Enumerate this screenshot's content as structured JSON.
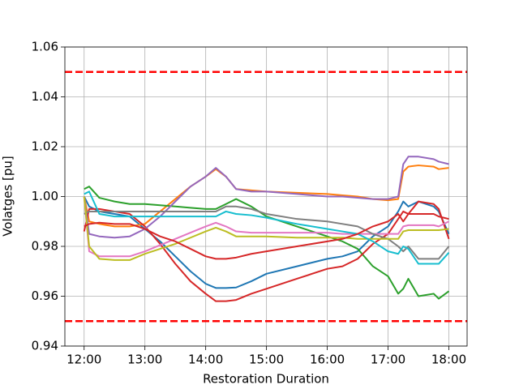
{
  "chart_data": {
    "type": "line",
    "xlabel": "Restoration Duration",
    "ylabel": "Volatges [pu]",
    "x": [
      "12:00",
      "12:05",
      "12:15",
      "12:30",
      "12:45",
      "13:00",
      "13:15",
      "13:30",
      "13:45",
      "14:00",
      "14:10",
      "14:20",
      "14:30",
      "14:45",
      "15:00",
      "15:30",
      "16:00",
      "16:15",
      "16:30",
      "16:45",
      "17:00",
      "17:10",
      "17:15",
      "17:20",
      "17:30",
      "17:45",
      "17:50",
      "18:00"
    ],
    "xlim": [
      "11:41",
      "18:18"
    ],
    "xticks": [
      "12:00",
      "13:00",
      "14:00",
      "15:00",
      "16:00",
      "17:00",
      "18:00"
    ],
    "ylim": [
      0.94,
      1.06
    ],
    "yticks": [
      0.94,
      0.96,
      0.98,
      {
        "value": 1,
        "label": "1.00"
      },
      1.02,
      1.04,
      1.06
    ],
    "grid": true,
    "hlines": [
      1.05,
      0.95
    ],
    "hline_color": "#ff0000",
    "series": [
      {
        "color": "#1f77b4",
        "values": [
          1.0,
          0.996,
          0.994,
          0.993,
          0.992,
          0.987,
          0.982,
          0.976,
          0.97,
          0.965,
          0.9633,
          0.9633,
          0.9635,
          0.966,
          0.969,
          0.972,
          0.975,
          0.976,
          0.978,
          0.984,
          0.988,
          0.994,
          0.998,
          0.996,
          0.998,
          0.996,
          0.994,
          0.985
        ]
      },
      {
        "color": "#ff7f0e",
        "values": [
          1.0,
          0.99,
          0.989,
          0.988,
          0.988,
          0.989,
          0.994,
          0.999,
          1.004,
          1.008,
          1.011,
          1.008,
          1.003,
          1.0025,
          1.002,
          1.0015,
          1.001,
          1.0005,
          1.0,
          0.999,
          0.9985,
          0.999,
          1.01,
          1.012,
          1.0125,
          1.012,
          1.011,
          1.0115
        ]
      },
      {
        "color": "#2ca02c",
        "values": [
          1.003,
          1.004,
          0.9995,
          0.998,
          0.997,
          0.997,
          0.9965,
          0.996,
          0.9955,
          0.995,
          0.995,
          0.997,
          0.999,
          0.996,
          0.992,
          0.988,
          0.984,
          0.982,
          0.979,
          0.972,
          0.968,
          0.961,
          0.963,
          0.967,
          0.96,
          0.961,
          0.959,
          0.962
        ]
      },
      {
        "color": "#d62728",
        "values": [
          0.986,
          0.995,
          0.995,
          0.994,
          0.993,
          0.988,
          0.981,
          0.973,
          0.966,
          0.961,
          0.958,
          0.958,
          0.9585,
          0.961,
          0.963,
          0.967,
          0.971,
          0.972,
          0.975,
          0.981,
          0.985,
          0.991,
          0.994,
          0.993,
          0.998,
          0.997,
          0.995,
          0.983
        ]
      },
      {
        "color": "#9467bd",
        "values": [
          1.0,
          0.985,
          0.984,
          0.9835,
          0.984,
          0.987,
          0.992,
          0.998,
          1.004,
          1.008,
          1.0115,
          1.008,
          1.003,
          1.002,
          1.002,
          1.001,
          1.0,
          1.0,
          0.9995,
          0.999,
          0.999,
          1.0,
          1.013,
          1.016,
          1.016,
          1.015,
          1.014,
          1.013
        ]
      },
      {
        "color": "#e377c2",
        "values": [
          1.0,
          0.978,
          0.976,
          0.976,
          0.976,
          0.978,
          0.9805,
          0.983,
          0.9855,
          0.988,
          0.9895,
          0.988,
          0.986,
          0.9855,
          0.9855,
          0.9855,
          0.9855,
          0.985,
          0.985,
          0.985,
          0.985,
          0.985,
          0.988,
          0.9885,
          0.9885,
          0.9885,
          0.988,
          0.99
        ]
      },
      {
        "color": "#7f7f7f",
        "values": [
          0.993,
          0.994,
          0.994,
          0.994,
          0.994,
          0.994,
          0.994,
          0.994,
          0.994,
          0.994,
          0.994,
          0.996,
          0.996,
          0.995,
          0.993,
          0.991,
          0.99,
          0.989,
          0.988,
          0.985,
          0.983,
          0.98,
          0.978,
          0.98,
          0.975,
          0.975,
          0.975,
          0.98
        ]
      },
      {
        "color": "#bcbd22",
        "values": [
          1.0,
          0.98,
          0.975,
          0.9745,
          0.9745,
          0.977,
          0.979,
          0.981,
          0.9835,
          0.986,
          0.9875,
          0.986,
          0.984,
          0.984,
          0.984,
          0.9835,
          0.9835,
          0.9835,
          0.983,
          0.983,
          0.983,
          0.983,
          0.986,
          0.9865,
          0.9865,
          0.9865,
          0.9865,
          0.987
        ]
      },
      {
        "color": "#17becf",
        "values": [
          1.001,
          1.002,
          0.993,
          0.992,
          0.992,
          0.992,
          0.992,
          0.992,
          0.992,
          0.992,
          0.992,
          0.994,
          0.993,
          0.9925,
          0.9915,
          0.989,
          0.987,
          0.986,
          0.985,
          0.982,
          0.978,
          0.977,
          0.98,
          0.979,
          0.973,
          0.973,
          0.973,
          0.9775
        ]
      },
      {
        "color": "#d62728",
        "values": [
          0.988,
          0.989,
          0.9895,
          0.989,
          0.989,
          0.987,
          0.984,
          0.982,
          0.979,
          0.976,
          0.975,
          0.975,
          0.9755,
          0.977,
          0.978,
          0.98,
          0.982,
          0.983,
          0.985,
          0.988,
          0.99,
          0.993,
          0.99,
          0.993,
          0.993,
          0.993,
          0.992,
          0.991
        ]
      }
    ]
  }
}
